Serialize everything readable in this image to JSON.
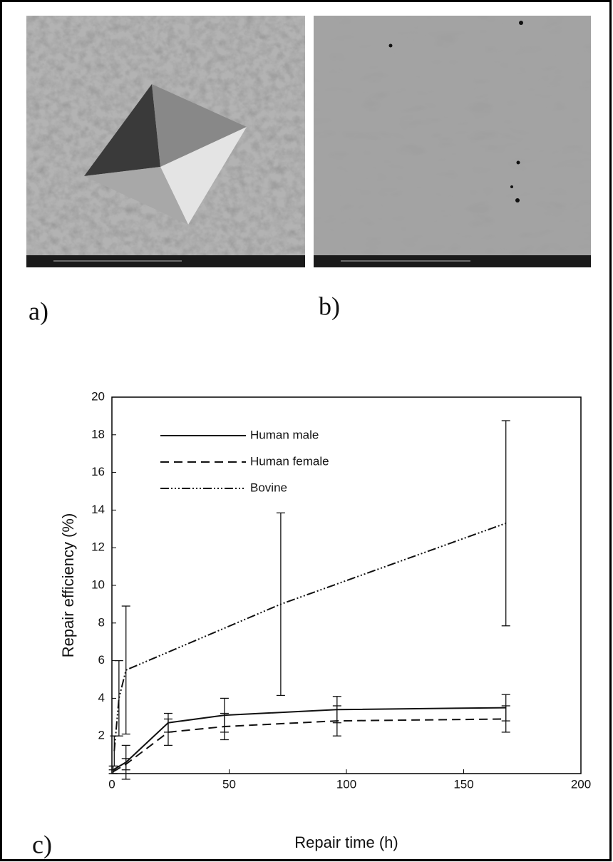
{
  "panel_labels": [
    "a)",
    "b)",
    "c)"
  ],
  "chart_data": {
    "type": "line",
    "xlabel": "Repair time (h)",
    "ylabel": "Repair efficiency (%)",
    "xlim": [
      0,
      200
    ],
    "xticks": [
      0,
      50,
      100,
      150,
      200
    ],
    "ylim": [
      0,
      20
    ],
    "yticks": [
      2,
      4,
      6,
      8,
      10,
      12,
      14,
      16,
      18,
      20
    ],
    "grid": false,
    "legend": "upper left",
    "series": [
      {
        "name": "Human male",
        "color": "#111111",
        "dash": "solid",
        "x": [
          0.5,
          6,
          24,
          48,
          96,
          168
        ],
        "values": [
          0.2,
          0.6,
          2.7,
          3.1,
          3.4,
          3.5
        ],
        "errors": [
          0.2,
          0.9,
          0.5,
          0.9,
          0.7,
          0.7
        ]
      },
      {
        "name": "Human female",
        "color": "#111111",
        "dash": "dashed",
        "x": [
          0.5,
          6,
          24,
          48,
          96,
          168
        ],
        "values": [
          0.1,
          0.5,
          2.2,
          2.5,
          2.8,
          2.9
        ],
        "errors": [
          0.1,
          0.3,
          0.7,
          0.7,
          0.8,
          0.7
        ]
      },
      {
        "name": "Bovine",
        "color": "#111111",
        "dash": "dashdotdot",
        "x": [
          1,
          3,
          6,
          72,
          168
        ],
        "values": [
          1.2,
          4.0,
          5.5,
          9.0,
          13.3
        ],
        "errors": [
          0.8,
          2.0,
          3.4,
          4.85,
          5.45
        ]
      }
    ]
  }
}
